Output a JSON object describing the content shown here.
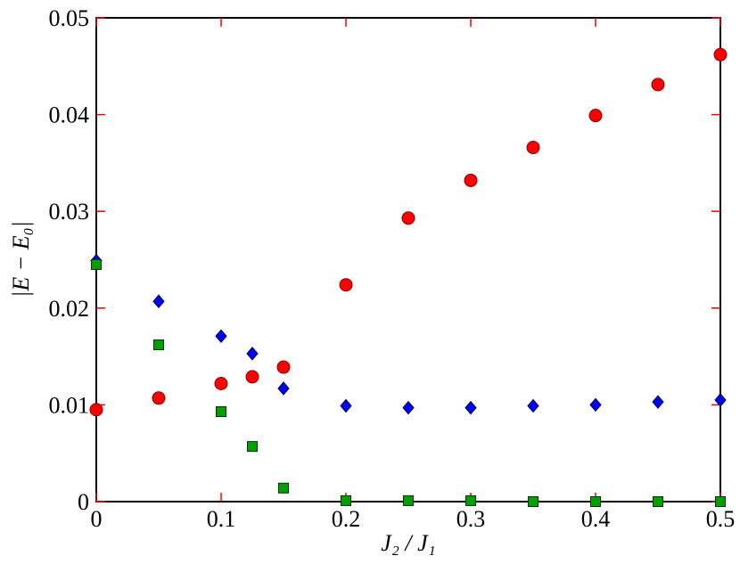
{
  "chart_data": {
    "type": "scatter",
    "xlabel": "J₂ / J₁",
    "ylabel": "|E − E₀|",
    "xlim": [
      0,
      0.5
    ],
    "xticks": [
      0,
      0.1,
      0.2,
      0.3,
      0.4,
      0.5
    ],
    "ylim": [
      0,
      0.05
    ],
    "yticks": [
      0,
      0.01,
      0.02,
      0.03,
      0.04,
      0.05
    ],
    "tick_color": "#ff0000",
    "series": [
      {
        "color": "#ff0000",
        "marker": "circle",
        "x": [
          0,
          0.05,
          0.1,
          0.125,
          0.15,
          0.2,
          0.25,
          0.3,
          0.35,
          0.4,
          0.45,
          0.5
        ],
        "values": [
          0.0095,
          0.0107,
          0.0122,
          0.0129,
          0.0139,
          0.0224,
          0.0293,
          0.0332,
          0.0366,
          0.0399,
          0.0431,
          0.0462
        ]
      },
      {
        "color": "#0000ff",
        "marker": "diamond",
        "x": [
          0,
          0.05,
          0.1,
          0.125,
          0.15,
          0.2,
          0.25,
          0.3,
          0.35,
          0.4,
          0.45,
          0.5
        ],
        "values": [
          0.0249,
          0.0207,
          0.0171,
          0.0153,
          0.0117,
          0.0099,
          0.0097,
          0.0097,
          0.0099,
          0.01,
          0.0103,
          0.0105
        ]
      },
      {
        "color": "#00a000",
        "marker": "square",
        "x": [
          0,
          0.05,
          0.1,
          0.125,
          0.15,
          0.2,
          0.25,
          0.3,
          0.35,
          0.4,
          0.45,
          0.5
        ],
        "values": [
          0.0245,
          0.0162,
          0.0093,
          0.0057,
          0.0014,
          0.0001,
          0.0001,
          0.0001,
          0,
          0,
          0,
          0
        ]
      }
    ]
  }
}
